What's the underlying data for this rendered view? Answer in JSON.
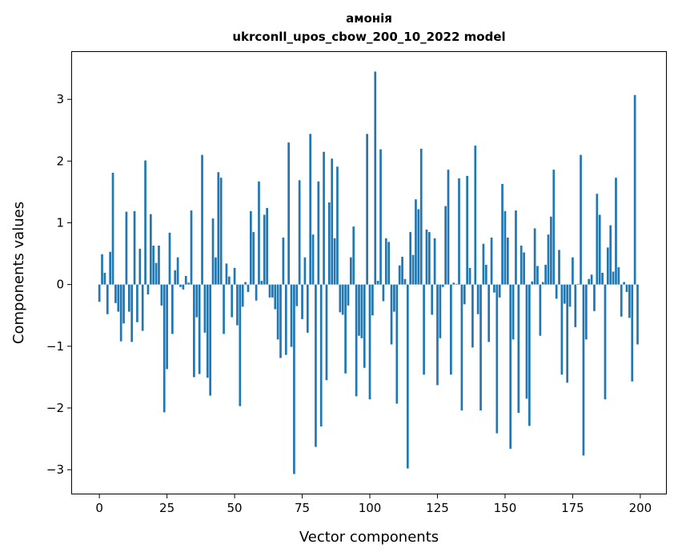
{
  "chart_data": {
    "type": "bar",
    "title": "амонія",
    "subtitle": "ukrconll_upos_cbow_200_10_2022 model",
    "xlabel": "Vector components",
    "ylabel": "Components values",
    "xlim": [
      -10.4,
      209.8
    ],
    "ylim": [
      -3.4,
      3.78
    ],
    "xticks": [
      0,
      25,
      50,
      75,
      100,
      125,
      150,
      175,
      200
    ],
    "xtick_labels": [
      "0",
      "25",
      "50",
      "75",
      "100",
      "125",
      "150",
      "175",
      "200"
    ],
    "yticks": [
      -3,
      -2,
      -1,
      0,
      1,
      2,
      3
    ],
    "ytick_labels": [
      "−3",
      "−2",
      "−1",
      "0",
      "1",
      "2",
      "3"
    ],
    "grid": false,
    "bar_color": "#1f77b4",
    "values": [
      -0.28,
      0.49,
      0.19,
      -0.48,
      0.53,
      1.81,
      -0.3,
      -0.44,
      -0.92,
      -0.63,
      1.18,
      -0.44,
      -0.93,
      1.19,
      -0.61,
      0.58,
      -0.75,
      2.01,
      -0.16,
      1.14,
      0.63,
      0.35,
      0.63,
      -0.34,
      -2.07,
      -1.37,
      0.84,
      -0.8,
      0.23,
      0.44,
      -0.04,
      -0.08,
      0.14,
      0.03,
      1.2,
      -1.5,
      -0.53,
      -1.45,
      2.1,
      -0.78,
      -1.51,
      -1.8,
      1.07,
      0.44,
      1.82,
      1.73,
      -0.8,
      0.34,
      0.13,
      -0.53,
      0.27,
      -0.66,
      -1.97,
      -0.36,
      0.04,
      -0.12,
      1.19,
      0.85,
      -0.26,
      1.67,
      0.06,
      1.13,
      1.24,
      -0.21,
      -0.21,
      -0.4,
      -0.89,
      -1.19,
      0.76,
      -1.14,
      2.3,
      -1.01,
      -3.07,
      -0.35,
      1.69,
      -0.56,
      0.44,
      -0.78,
      2.44,
      0.81,
      -2.63,
      1.67,
      -2.3,
      2.15,
      -1.55,
      1.33,
      2.04,
      0.75,
      1.91,
      -0.45,
      -0.49,
      -1.44,
      -0.34,
      0.44,
      0.94,
      -1.81,
      -0.83,
      -0.87,
      -1.35,
      2.44,
      -1.86,
      -0.5,
      3.45,
      0.06,
      2.19,
      -0.27,
      0.75,
      0.69,
      -0.97,
      -0.44,
      -1.93,
      0.31,
      0.45,
      0.09,
      -2.98,
      0.85,
      0.48,
      1.38,
      1.22,
      2.2,
      -1.46,
      0.89,
      0.85,
      -0.49,
      0.75,
      -1.63,
      -0.87,
      -0.04,
      1.27,
      1.86,
      -1.46,
      0.03,
      0.01,
      1.72,
      -2.04,
      -0.32,
      1.76,
      0.27,
      -1.02,
      2.25,
      -0.48,
      -2.04,
      0.66,
      0.32,
      -0.93,
      0.76,
      -0.13,
      -2.41,
      -0.21,
      1.63,
      1.19,
      0.76,
      -2.66,
      -0.89,
      1.2,
      -2.08,
      0.63,
      0.52,
      -1.85,
      -2.29,
      0.05,
      0.91,
      0.3,
      -0.83,
      0.04,
      0.32,
      0.81,
      1.1,
      1.86,
      -0.23,
      0.56,
      -1.46,
      -0.31,
      -1.59,
      -0.36,
      0.44,
      -0.69,
      0.01,
      2.1,
      -2.77,
      -0.89,
      0.09,
      0.16,
      -0.43,
      1.47,
      1.13,
      0.19,
      -1.86,
      0.6,
      0.96,
      0.21,
      1.73,
      0.28,
      -0.52,
      0.04,
      -0.12,
      -0.54,
      -1.57,
      3.07,
      -0.97
    ]
  }
}
